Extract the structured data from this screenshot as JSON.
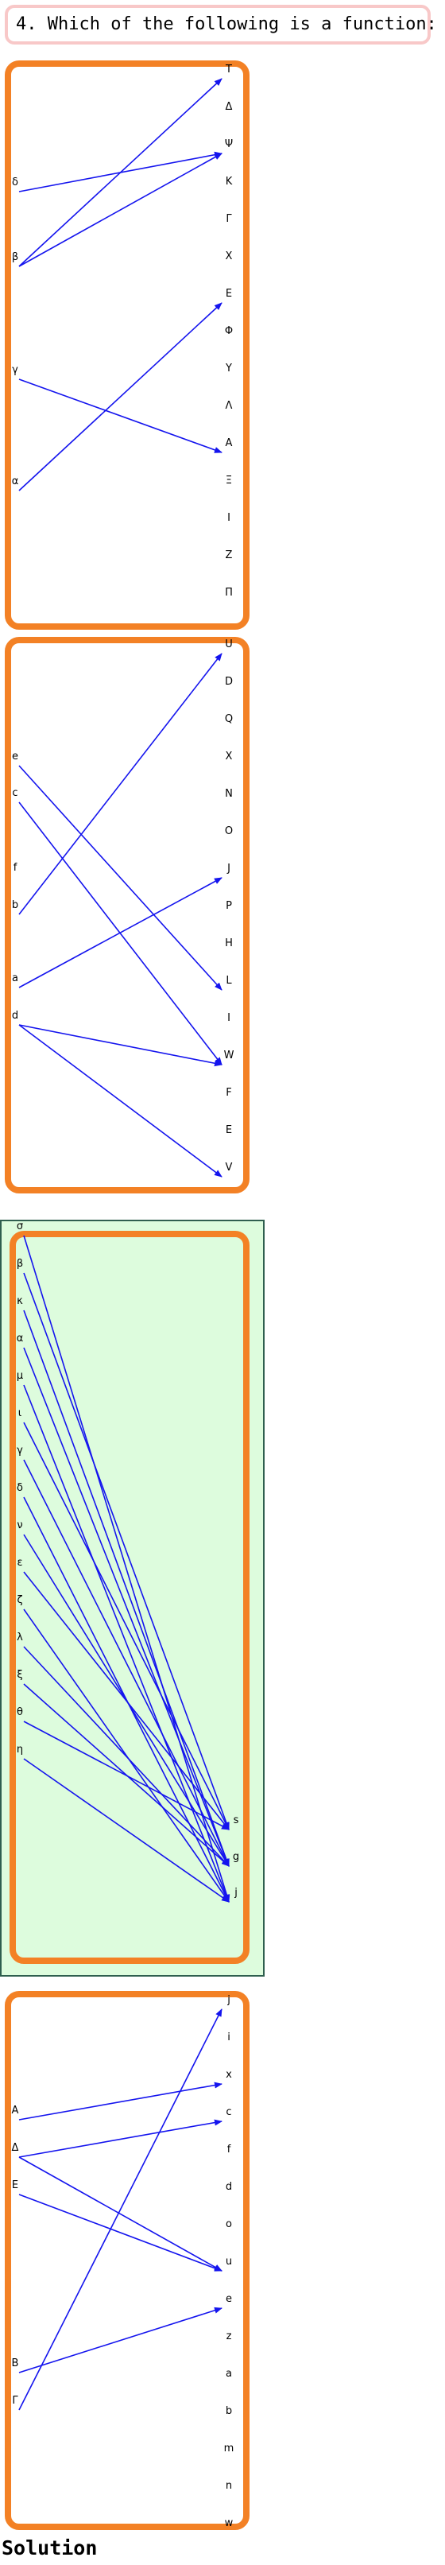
{
  "question": {
    "text": "4. Which of the following is a function:"
  },
  "solution_label": "Solution",
  "colors": {
    "box_border": "#f38125",
    "arrow": "#1414ee",
    "highlight_bg": "#ddfcdd",
    "question_border": "#f8c8c8"
  },
  "diagrams": [
    {
      "domain": [
        "δ",
        "β",
        "γ",
        "α"
      ],
      "codomain": [
        "T",
        "Δ",
        "Ψ",
        "K",
        "Γ",
        "X",
        "E",
        "Φ",
        "Y",
        "Λ",
        "A",
        "Ξ",
        "I",
        "Z",
        "Π"
      ],
      "arrows": [
        [
          "δ",
          "Ψ"
        ],
        [
          "β",
          "T"
        ],
        [
          "β",
          "Ψ"
        ],
        [
          "γ",
          "A"
        ],
        [
          "α",
          "E"
        ]
      ],
      "highlighted": false
    },
    {
      "domain": [
        "e",
        "c",
        "f",
        "b",
        "a",
        "d"
      ],
      "codomain": [
        "U",
        "D",
        "Q",
        "X",
        "N",
        "O",
        "J",
        "P",
        "H",
        "L",
        "I",
        "W",
        "F",
        "E",
        "V"
      ],
      "arrows": [
        [
          "e",
          "L"
        ],
        [
          "c",
          "W"
        ],
        [
          "b",
          "U"
        ],
        [
          "a",
          "J"
        ],
        [
          "d",
          "W"
        ],
        [
          "d",
          "V"
        ]
      ],
      "highlighted": false
    },
    {
      "domain": [
        "σ",
        "β",
        "κ",
        "α",
        "μ",
        "ι",
        "γ",
        "δ",
        "ν",
        "ε",
        "ζ",
        "λ",
        "ξ",
        "θ",
        "η"
      ],
      "codomain": [
        "s",
        "g",
        "j"
      ],
      "arrows": [
        [
          "σ",
          "j"
        ],
        [
          "β",
          "s"
        ],
        [
          "κ",
          "g"
        ],
        [
          "α",
          "g"
        ],
        [
          "μ",
          "j"
        ],
        [
          "ι",
          "s"
        ],
        [
          "γ",
          "g"
        ],
        [
          "δ",
          "j"
        ],
        [
          "ν",
          "g"
        ],
        [
          "ε",
          "s"
        ],
        [
          "ζ",
          "j"
        ],
        [
          "λ",
          "g"
        ],
        [
          "ξ",
          "g"
        ],
        [
          "θ",
          "s"
        ],
        [
          "η",
          "j"
        ]
      ],
      "highlighted": true
    },
    {
      "domain": [
        "A",
        "Δ",
        "E",
        "B",
        "Γ"
      ],
      "codomain": [
        "j",
        "i",
        "x",
        "c",
        "f",
        "d",
        "o",
        "u",
        "e",
        "z",
        "a",
        "b",
        "m",
        "n",
        "w"
      ],
      "arrows": [
        [
          "A",
          "x"
        ],
        [
          "Δ",
          "c"
        ],
        [
          "Δ",
          "u"
        ],
        [
          "E",
          "u"
        ],
        [
          "B",
          "e"
        ],
        [
          "Γ",
          "j"
        ]
      ],
      "highlighted": false
    }
  ]
}
